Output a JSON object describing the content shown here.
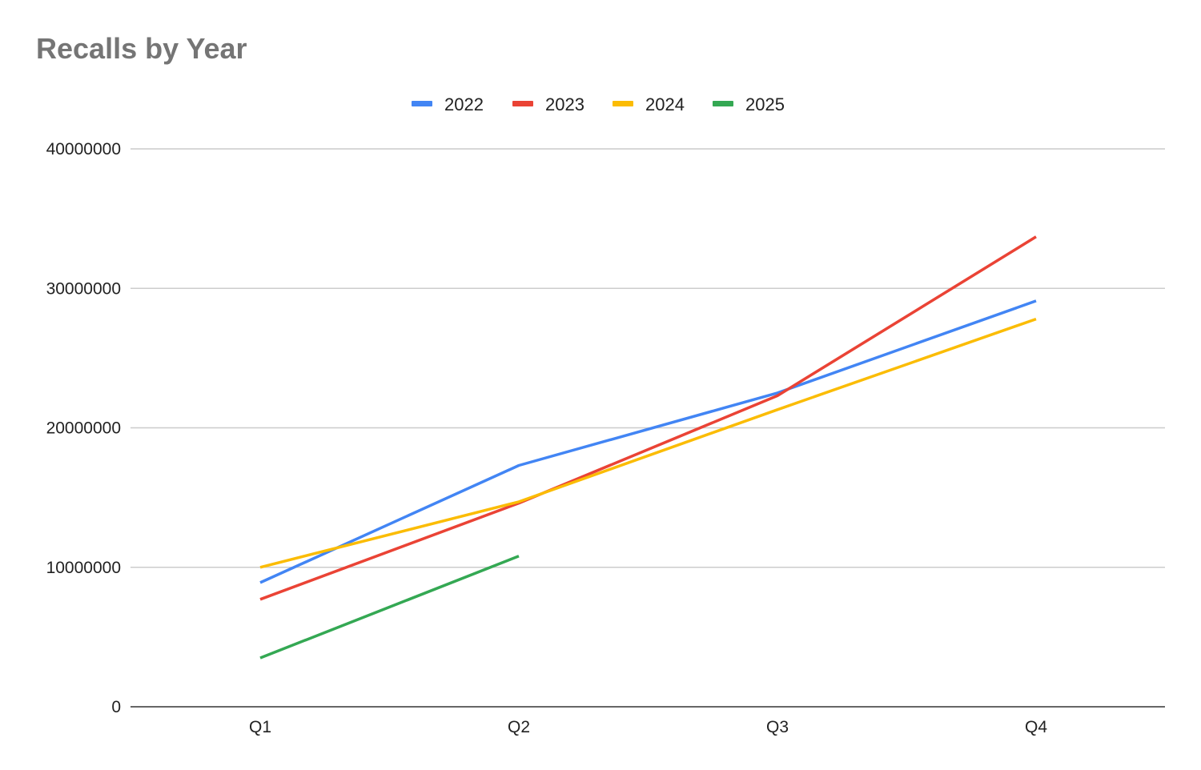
{
  "chart_data": {
    "type": "line",
    "title": "Recalls by Year",
    "xlabel": "",
    "ylabel": "",
    "categories": [
      "Q1",
      "Q2",
      "Q3",
      "Q4"
    ],
    "ylim": [
      0,
      40000000
    ],
    "yticks": [
      "0",
      "10000000",
      "20000000",
      "30000000",
      "40000000"
    ],
    "grid": true,
    "legend_position": "top-center",
    "series": [
      {
        "name": "2022",
        "color": "#4285f4",
        "values": [
          8900000,
          17300000,
          22500000,
          29100000
        ]
      },
      {
        "name": "2023",
        "color": "#ea4335",
        "values": [
          7700000,
          14600000,
          22300000,
          33700000
        ]
      },
      {
        "name": "2024",
        "color": "#fbbc04",
        "values": [
          10000000,
          14700000,
          21300000,
          27800000
        ]
      },
      {
        "name": "2025",
        "color": "#34a853",
        "values": [
          3500000,
          10800000,
          null,
          null
        ]
      }
    ]
  }
}
